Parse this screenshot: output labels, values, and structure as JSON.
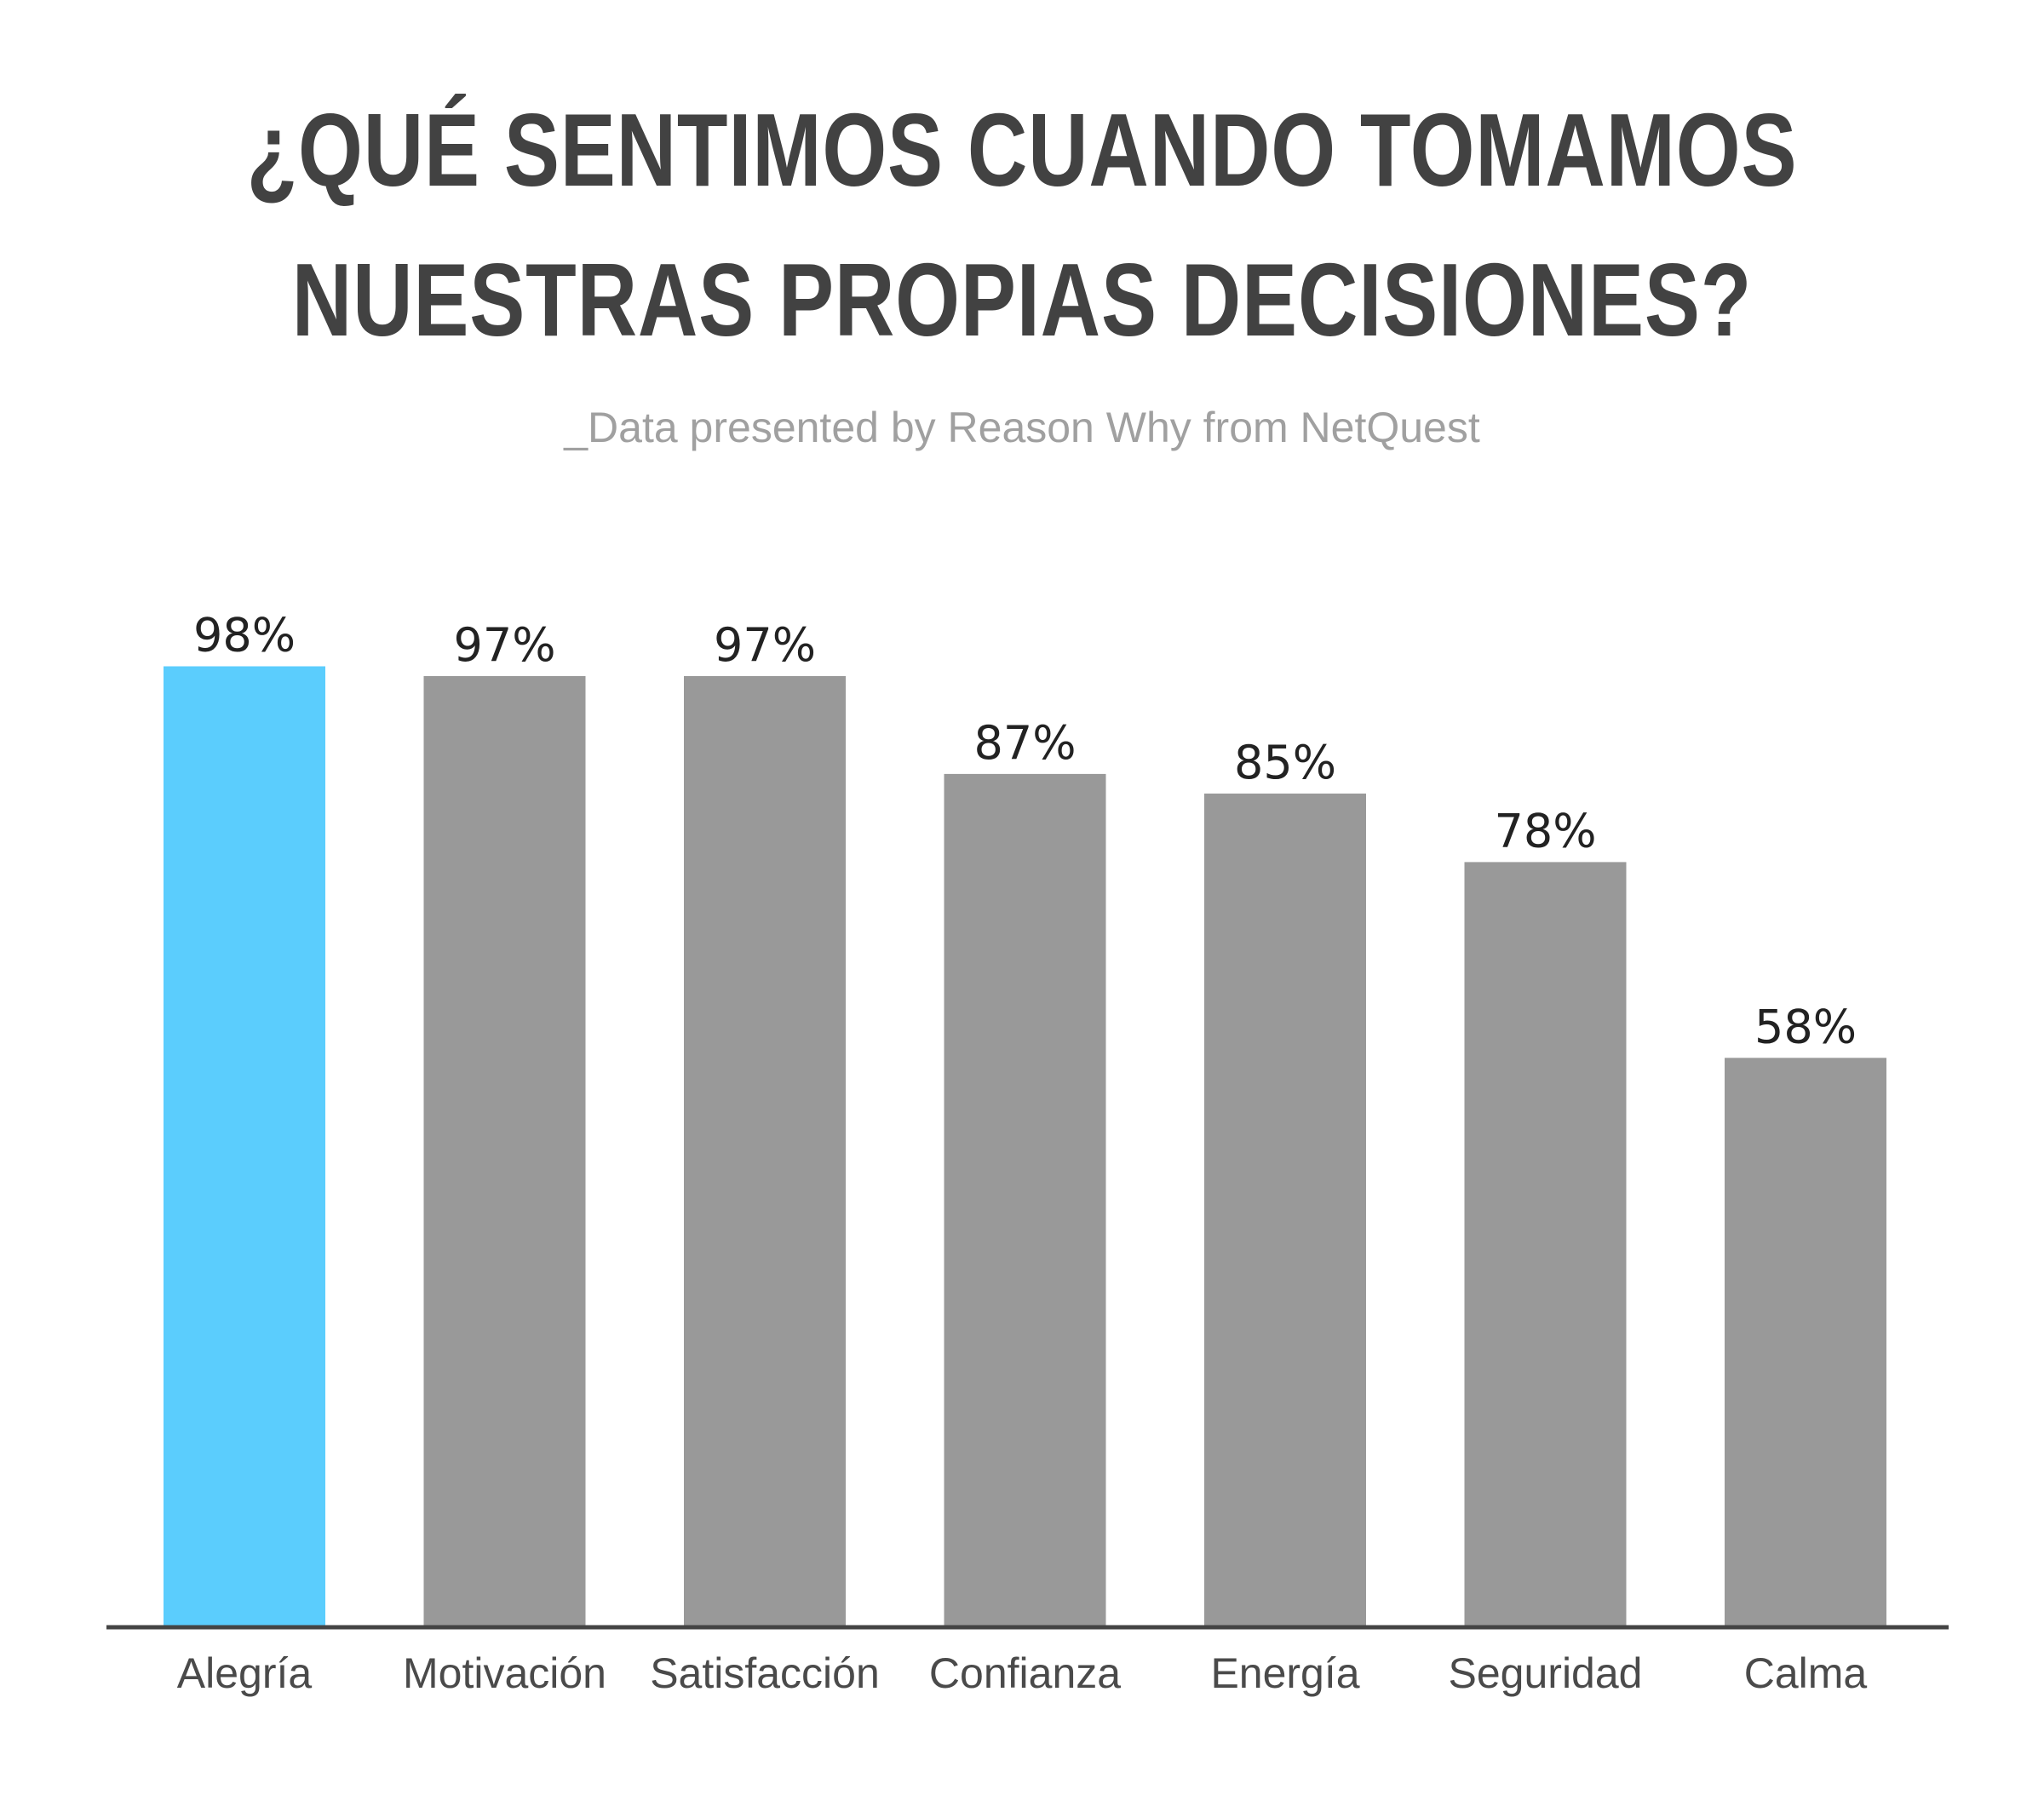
{
  "title": {
    "line1": "¿QUÉ SENTIMOS CUANDO TOMAMOS",
    "line2": "NUESTRAS PROPIAS DECISIONES?"
  },
  "subtitle": "_Data presented by Reason Why from NetQuest",
  "colors": {
    "highlight": "#5bcdfd",
    "bar": "#999999",
    "axis": "#444444",
    "title": "#424242",
    "subtitle": "#a0a0a0"
  },
  "chart_data": {
    "type": "bar",
    "title": "¿QUÉ SENTIMOS CUANDO TOMAMOS NUESTRAS PROPIAS DECISIONES?",
    "xlabel": "",
    "ylabel": "",
    "categories": [
      "Alegría",
      "Motivación",
      "Satisfacción",
      "Confianza",
      "Energía",
      "Seguridad",
      "Calma"
    ],
    "values": [
      98,
      97,
      97,
      87,
      85,
      78,
      58
    ],
    "value_labels": [
      "98%",
      "97%",
      "97%",
      "87%",
      "85%",
      "78%",
      "58%"
    ],
    "highlighted_category": "Alegría",
    "ylim": [
      0,
      100
    ],
    "grid": false,
    "legend": "none"
  }
}
